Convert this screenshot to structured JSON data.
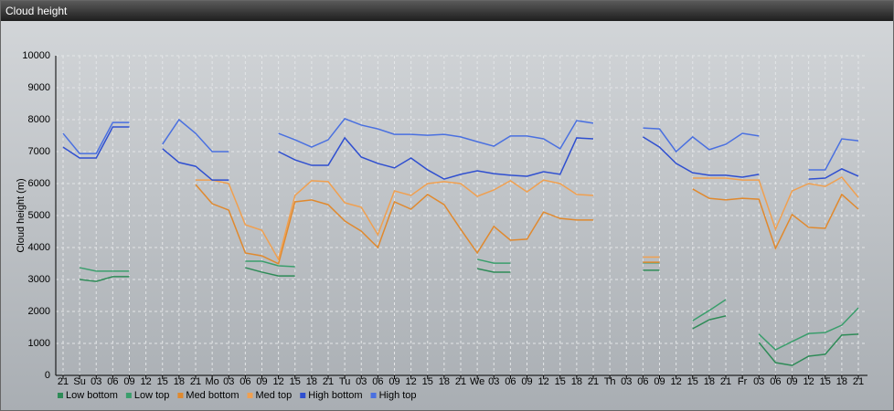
{
  "chart_data": {
    "type": "line",
    "title": "Cloud height",
    "y_label": "Cloud height (m)",
    "categories": [
      "21",
      "Su",
      "03",
      "06",
      "09",
      "12",
      "15",
      "18",
      "21",
      "Mo",
      "03",
      "06",
      "09",
      "12",
      "15",
      "18",
      "21",
      "Tu",
      "03",
      "06",
      "09",
      "12",
      "15",
      "18",
      "21",
      "We",
      "03",
      "06",
      "09",
      "12",
      "15",
      "18",
      "21",
      "Th",
      "03",
      "06",
      "09",
      "12",
      "15",
      "18",
      "21",
      "Fr",
      "03",
      "06",
      "09",
      "12",
      "15",
      "18",
      "21"
    ],
    "ylim": [
      0,
      10000
    ],
    "yticks": [
      0,
      1000,
      2000,
      3000,
      4000,
      5000,
      6000,
      7000,
      8000,
      9000,
      10000
    ],
    "grid": true,
    "legend": "bottom-left",
    "series": [
      {
        "name": "Low bottom",
        "color": "#2e8b57",
        "values": [
          null,
          3000,
          2940,
          3090,
          3090,
          null,
          null,
          null,
          null,
          null,
          null,
          3370,
          3230,
          3110,
          3110,
          null,
          null,
          null,
          null,
          null,
          null,
          null,
          null,
          null,
          null,
          3340,
          3230,
          3230,
          null,
          null,
          null,
          null,
          null,
          null,
          null,
          3290,
          3290,
          null,
          1460,
          1740,
          1860,
          null,
          1030,
          400,
          310,
          600,
          660,
          1260,
          1290
        ]
      },
      {
        "name": "Low top",
        "color": "#3a9e6c",
        "values": [
          null,
          3370,
          3260,
          3260,
          3260,
          null,
          null,
          null,
          null,
          null,
          null,
          3570,
          3570,
          3430,
          3400,
          null,
          null,
          null,
          null,
          null,
          null,
          null,
          null,
          null,
          null,
          3630,
          3510,
          3510,
          null,
          null,
          null,
          null,
          null,
          null,
          null,
          3520,
          3520,
          null,
          1710,
          2030,
          2370,
          null,
          1290,
          800,
          1060,
          1310,
          1340,
          1570,
          2110
        ]
      },
      {
        "name": "Med bottom",
        "color": "#e0892e",
        "values": [
          null,
          null,
          null,
          null,
          null,
          null,
          null,
          null,
          5970,
          5370,
          5170,
          3830,
          3740,
          3490,
          5430,
          5490,
          5340,
          4830,
          4510,
          4000,
          5430,
          5200,
          5660,
          5340,
          4570,
          3830,
          4660,
          4230,
          4260,
          5110,
          4910,
          4860,
          4860,
          null,
          null,
          3540,
          3540,
          null,
          5830,
          5540,
          5490,
          5540,
          5510,
          3970,
          5030,
          4630,
          4600,
          5660,
          5200
        ]
      },
      {
        "name": "Med top",
        "color": "#f0a050",
        "values": [
          null,
          null,
          null,
          null,
          null,
          null,
          null,
          null,
          6110,
          6110,
          6000,
          4710,
          4540,
          3630,
          5630,
          6090,
          6060,
          5400,
          5260,
          4400,
          5770,
          5630,
          6000,
          6060,
          6000,
          5600,
          5800,
          6090,
          5740,
          6110,
          6000,
          5660,
          5630,
          null,
          null,
          3700,
          3700,
          null,
          6170,
          6170,
          6170,
          6110,
          6110,
          4570,
          5770,
          6000,
          5910,
          6200,
          5570
        ]
      },
      {
        "name": "High bottom",
        "color": "#2f4fd0",
        "values": [
          7140,
          6800,
          6800,
          7770,
          7770,
          null,
          7090,
          6660,
          6540,
          6110,
          6110,
          null,
          null,
          7000,
          6740,
          6570,
          6570,
          7430,
          6830,
          6630,
          6490,
          6800,
          6430,
          6140,
          6290,
          6400,
          6310,
          6260,
          6230,
          6370,
          6290,
          7430,
          7400,
          null,
          null,
          7460,
          7140,
          6630,
          6340,
          6260,
          6260,
          6200,
          6290,
          null,
          null,
          6140,
          6170,
          6460,
          6230
        ]
      },
      {
        "name": "High top",
        "color": "#4a70e0",
        "values": [
          7570,
          6940,
          6940,
          7910,
          7910,
          null,
          7230,
          8000,
          7570,
          7000,
          7000,
          null,
          null,
          7570,
          7370,
          7140,
          7370,
          8030,
          7830,
          7710,
          7540,
          7540,
          7510,
          7540,
          7460,
          7310,
          7170,
          7490,
          7490,
          7400,
          7090,
          7970,
          7890,
          null,
          null,
          7740,
          7710,
          7000,
          7460,
          7060,
          7230,
          7570,
          7490,
          null,
          null,
          6430,
          6430,
          7400,
          7340
        ]
      }
    ]
  }
}
